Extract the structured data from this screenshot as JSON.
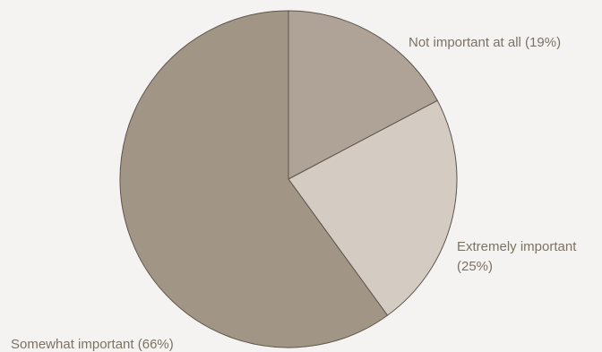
{
  "chart_data": {
    "type": "pie",
    "title": "",
    "start_angle_deg": 0,
    "direction": "clockwise",
    "slices": [
      {
        "label": "Not important at all (19%)",
        "value": 19,
        "color": "#aea396"
      },
      {
        "label": "Extremely important",
        "label_line2": "(25%)",
        "value": 25,
        "color": "#d4cbc2"
      },
      {
        "label": "Somewhat important (66%)",
        "value": 66,
        "color": "#a19686"
      }
    ],
    "label_color": "#7d7163",
    "stroke_color": "#5e554b",
    "background": "#f5f3f1"
  }
}
